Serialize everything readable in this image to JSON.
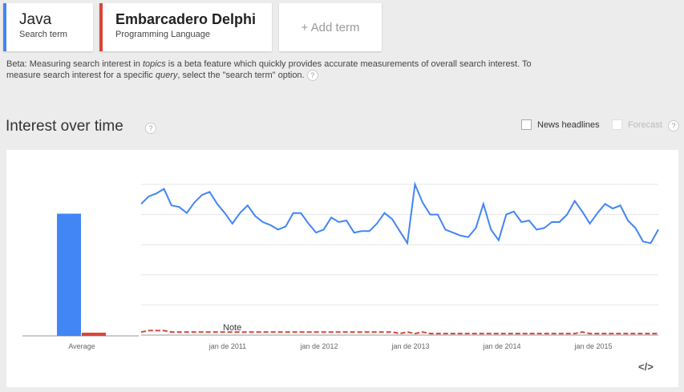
{
  "terms": [
    {
      "name": "Java",
      "type": "Search term",
      "color": "#4285f4"
    },
    {
      "name": "Embarcadero Delphi",
      "type": "Programming Language",
      "color": "#db4437"
    }
  ],
  "add_term_label": "+ Add term",
  "beta_notice": {
    "part1": "Beta: Measuring search interest in ",
    "topics": "topics",
    "part2": " is a beta feature which quickly provides accurate measurements of overall search interest. To measure search interest for a specific ",
    "query": "query",
    "part3": ", select the \"search term\" option."
  },
  "section_title": "Interest over time",
  "news_headlines_label": "News headlines",
  "forecast_label": "Forecast",
  "embed_label": "</>",
  "help_icon": "?",
  "chart_data": {
    "type": "line",
    "x_tick_labels": [
      "jan de 2011",
      "jan de 2012",
      "jan de 2013",
      "jan de 2014",
      "jan de 2015"
    ],
    "ylim": [
      0,
      100
    ],
    "grid": true,
    "average": {
      "label": "Average",
      "values": [
        {
          "series": "Java",
          "value": 77
        },
        {
          "series": "Embarcadero Delphi",
          "value": 2
        }
      ]
    },
    "annotation": "Note",
    "series": [
      {
        "name": "Java",
        "color": "#4285f4",
        "values": [
          87,
          92,
          94,
          97,
          86,
          85,
          81,
          88,
          93,
          95,
          87,
          81,
          74,
          81,
          86,
          79,
          75,
          73,
          70,
          72,
          81,
          81,
          74,
          68,
          70,
          78,
          75,
          76,
          68,
          69,
          69,
          74,
          81,
          77,
          69,
          61,
          100,
          88,
          80,
          80,
          70,
          68,
          66,
          65,
          71,
          87,
          70,
          63,
          80,
          82,
          75,
          76,
          70,
          71,
          75,
          75,
          80,
          89,
          82,
          74,
          81,
          87,
          84,
          86,
          76,
          71,
          62,
          61,
          70
        ]
      },
      {
        "name": "Embarcadero Delphi",
        "color": "#db4437",
        "values": [
          2,
          3,
          3,
          3,
          2,
          2,
          2,
          2,
          2,
          2,
          2,
          2,
          2,
          2,
          2,
          2,
          2,
          2,
          2,
          2,
          2,
          2,
          2,
          2,
          2,
          2,
          2,
          2,
          2,
          2,
          2,
          2,
          2,
          2,
          1,
          2,
          1,
          2,
          1,
          1,
          1,
          1,
          1,
          1,
          1,
          1,
          1,
          1,
          1,
          1,
          1,
          1,
          1,
          1,
          1,
          1,
          1,
          1,
          2,
          1,
          1,
          1,
          1,
          1,
          1,
          1,
          1,
          1,
          1
        ]
      }
    ]
  }
}
